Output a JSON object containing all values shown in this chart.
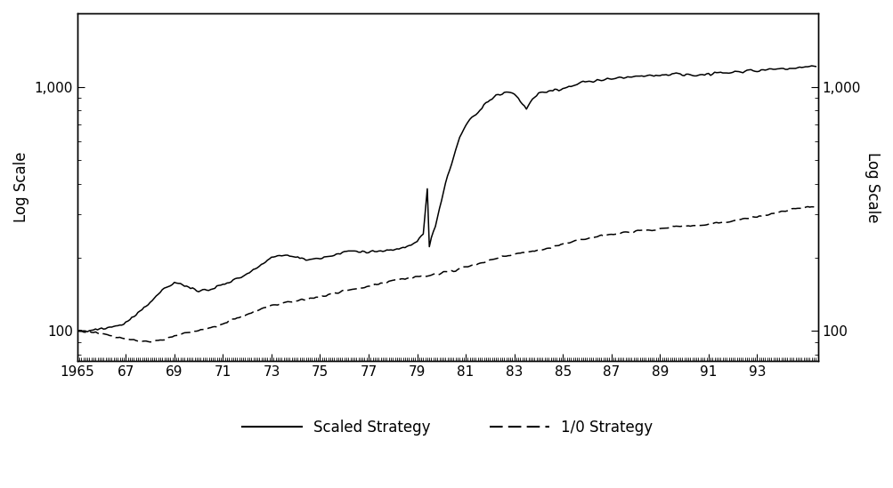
{
  "ylabel_left": "Log Scale",
  "ylabel_right": "Log Scale",
  "xlim": [
    1965,
    1995.5
  ],
  "ylim": [
    75,
    2000
  ],
  "yticks": [
    100,
    1000
  ],
  "ytick_labels": [
    "100",
    "1,000"
  ],
  "xtick_positions": [
    1965,
    1967,
    1969,
    1971,
    1973,
    1975,
    1977,
    1979,
    1981,
    1983,
    1985,
    1987,
    1989,
    1991,
    1993
  ],
  "xtick_labels": [
    "1965",
    "67",
    "69",
    "71",
    "73",
    "75",
    "77",
    "79",
    "81",
    "83",
    "85",
    "87",
    "89",
    "91",
    "93"
  ],
  "legend_entries": [
    "Scaled Strategy",
    "1/0 Strategy"
  ],
  "background_color": "#ffffff"
}
